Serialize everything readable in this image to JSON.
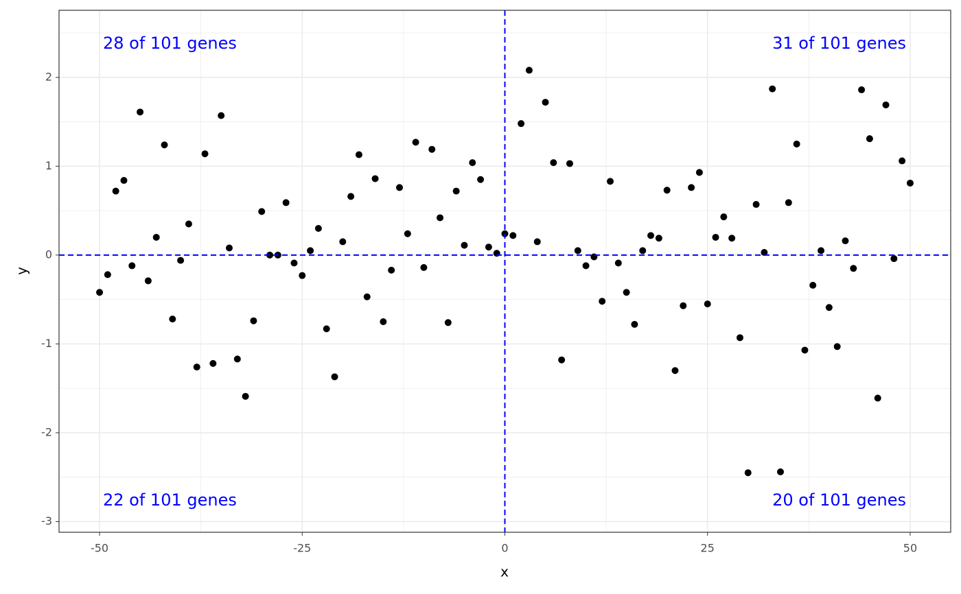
{
  "chart_data": {
    "type": "scatter",
    "x_label": "x",
    "y_label": "y",
    "x": [
      -50,
      -49,
      -48,
      -47,
      -46,
      -45,
      -44,
      -43,
      -42,
      -41,
      -40,
      -39,
      -38,
      -37,
      -36,
      -35,
      -34,
      -33,
      -32,
      -31,
      -30,
      -29,
      -28,
      -27,
      -26,
      -25,
      -24,
      -23,
      -22,
      -21,
      -20,
      -19,
      -18,
      -17,
      -16,
      -15,
      -14,
      -13,
      -12,
      -11,
      -10,
      -9,
      -8,
      -7,
      -6,
      -5,
      -4,
      -3,
      -2,
      -1,
      0,
      1,
      2,
      3,
      4,
      5,
      6,
      7,
      8,
      9,
      10,
      11,
      12,
      13,
      14,
      15,
      16,
      17,
      18,
      19,
      20,
      21,
      22,
      23,
      24,
      25,
      26,
      27,
      28,
      29,
      30,
      31,
      32,
      33,
      34,
      35,
      36,
      37,
      38,
      39,
      40,
      41,
      42,
      43,
      44,
      45,
      46,
      47,
      48,
      49,
      50
    ],
    "values": [
      -0.42,
      -0.22,
      0.72,
      0.84,
      -0.12,
      1.61,
      -0.29,
      0.2,
      1.24,
      -0.72,
      -0.06,
      0.35,
      -1.26,
      1.14,
      -1.22,
      1.57,
      0.08,
      -1.17,
      -1.59,
      -0.74,
      0.49,
      0.0,
      0.0,
      0.59,
      -0.09,
      -0.23,
      0.05,
      0.3,
      -0.83,
      -1.37,
      0.15,
      0.66,
      1.13,
      -0.47,
      0.86,
      -0.75,
      -0.17,
      0.76,
      0.24,
      1.27,
      -0.14,
      1.19,
      0.42,
      -0.76,
      0.72,
      0.11,
      1.04,
      0.85,
      0.09,
      0.02,
      0.24,
      0.22,
      1.48,
      2.08,
      0.15,
      1.72,
      1.04,
      -1.18,
      1.03,
      0.05,
      -0.12,
      -0.02,
      -0.52,
      0.83,
      -0.09,
      -0.42,
      -0.78,
      0.05,
      0.22,
      0.19,
      0.73,
      -1.3,
      -0.57,
      0.76,
      0.93,
      -0.55,
      0.2,
      0.43,
      0.19,
      -0.93,
      -2.45,
      0.57,
      0.03,
      1.87,
      -2.44,
      0.59,
      1.25,
      -1.07,
      -0.34,
      0.05,
      -0.59,
      -1.03,
      0.16,
      -0.15,
      1.86,
      1.31,
      -1.61,
      1.69,
      -0.04,
      1.06,
      0.81
    ],
    "color": "#000000",
    "xlim": [
      -55,
      55
    ],
    "ylim": [
      -3.12,
      2.755
    ],
    "xticks": [
      -50,
      -25,
      0,
      25,
      50
    ],
    "yticks": [
      -3,
      -2,
      -1,
      0,
      1,
      2
    ],
    "grid": true,
    "vlines": [
      0
    ],
    "hlines": [
      0
    ],
    "line_color": "#0000ff",
    "annotations": [
      {
        "text": "28 of 101 genes",
        "corner": "top-left"
      },
      {
        "text": "31 of 101 genes",
        "corner": "top-right"
      },
      {
        "text": "22 of 101 genes",
        "corner": "bottom-left"
      },
      {
        "text": "20 of 101 genes",
        "corner": "bottom-right"
      }
    ],
    "annotation_color": "#0000ff"
  }
}
